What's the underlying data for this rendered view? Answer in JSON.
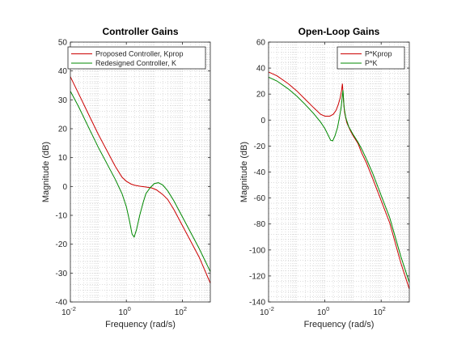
{
  "chart_data": [
    {
      "type": "line",
      "title": "Controller Gains",
      "xlabel": "Frequency  (rad/s)",
      "ylabel": "Magnitude (dB)",
      "xscale": "log",
      "xlim": [
        0.01,
        1000
      ],
      "ylim": [
        -40,
        50
      ],
      "xticks": [
        0.01,
        1,
        100
      ],
      "xtick_labels": [
        [
          "10",
          "-2"
        ],
        [
          "10",
          "0"
        ],
        [
          "10",
          "2"
        ]
      ],
      "yticks": [
        -40,
        -30,
        -20,
        -10,
        0,
        10,
        20,
        30,
        40,
        50
      ],
      "grid": "minor dotted",
      "legend_position": "top-right",
      "series": [
        {
          "name": "Proposed Controller, Kprop",
          "color": "#cc0000",
          "x": [
            0.01,
            0.02,
            0.05,
            0.1,
            0.2,
            0.4,
            0.7,
            1.0,
            1.5,
            2,
            3,
            5,
            8,
            12,
            20,
            30,
            50,
            100,
            200,
            400,
            1000
          ],
          "y": [
            38,
            32,
            24,
            18,
            12.5,
            7,
            3.2,
            1.8,
            0.8,
            0.4,
            0.1,
            -0.2,
            -0.5,
            -1.2,
            -2.8,
            -4.5,
            -8,
            -13.5,
            -19,
            -24.5,
            -33.5
          ]
        },
        {
          "name": "Redesigned Controller, K",
          "color": "#008800",
          "x": [
            0.01,
            0.02,
            0.05,
            0.1,
            0.2,
            0.4,
            0.7,
            1.0,
            1.3,
            1.6,
            1.9,
            2.3,
            3,
            4,
            5,
            7,
            10,
            14,
            20,
            30,
            50,
            100,
            200,
            400,
            1000
          ],
          "y": [
            33,
            27.5,
            19.5,
            13.5,
            8,
            2.5,
            -2.5,
            -7,
            -12,
            -16.5,
            -17.5,
            -15,
            -10,
            -5.5,
            -2.5,
            -0.5,
            1,
            1.3,
            0.5,
            -1.5,
            -5,
            -10.5,
            -16,
            -21.5,
            -29.5
          ]
        }
      ]
    },
    {
      "type": "line",
      "title": "Open-Loop Gains",
      "xlabel": "Frequency  (rad/s)",
      "ylabel": "Magnitude (dB)",
      "xscale": "log",
      "xlim": [
        0.01,
        1000
      ],
      "ylim": [
        -140,
        60
      ],
      "xticks": [
        0.01,
        1,
        100
      ],
      "xtick_labels": [
        [
          "10",
          "-2"
        ],
        [
          "10",
          "0"
        ],
        [
          "10",
          "2"
        ]
      ],
      "yticks": [
        -140,
        -120,
        -100,
        -80,
        -60,
        -40,
        -20,
        0,
        20,
        40,
        60
      ],
      "grid": "minor dotted",
      "legend_position": "top-right",
      "series": [
        {
          "name": "P*Kprop",
          "color": "#cc0000",
          "x": [
            0.01,
            0.02,
            0.05,
            0.1,
            0.2,
            0.4,
            0.7,
            1.0,
            1.5,
            2,
            2.5,
            3,
            3.5,
            3.9,
            4.2,
            4.6,
            5,
            6,
            8,
            10,
            15,
            20,
            30,
            50,
            100,
            200,
            500,
            1000
          ],
          "y": [
            37,
            34,
            28,
            22.5,
            16,
            9.5,
            4.5,
            3,
            3,
            4.5,
            7.5,
            12,
            17,
            22.5,
            28,
            15,
            6,
            -2,
            -8,
            -12,
            -18,
            -25,
            -33,
            -45,
            -62,
            -79,
            -110,
            -130
          ]
        },
        {
          "name": "P*K",
          "color": "#008800",
          "x": [
            0.01,
            0.02,
            0.05,
            0.1,
            0.2,
            0.4,
            0.7,
            1.0,
            1.3,
            1.6,
            1.9,
            2.3,
            2.8,
            3.3,
            3.8,
            4.1,
            4.4,
            4.8,
            5.5,
            7,
            10,
            15,
            20,
            30,
            50,
            100,
            200,
            500,
            1000
          ],
          "y": [
            33,
            30,
            24,
            18.5,
            12,
            5,
            -1.5,
            -6.5,
            -11.5,
            -15.5,
            -16,
            -12,
            -6,
            2,
            10,
            17,
            23,
            10,
            2,
            -5,
            -11,
            -17,
            -22,
            -30,
            -41,
            -58,
            -75,
            -105,
            -125
          ]
        }
      ]
    }
  ]
}
